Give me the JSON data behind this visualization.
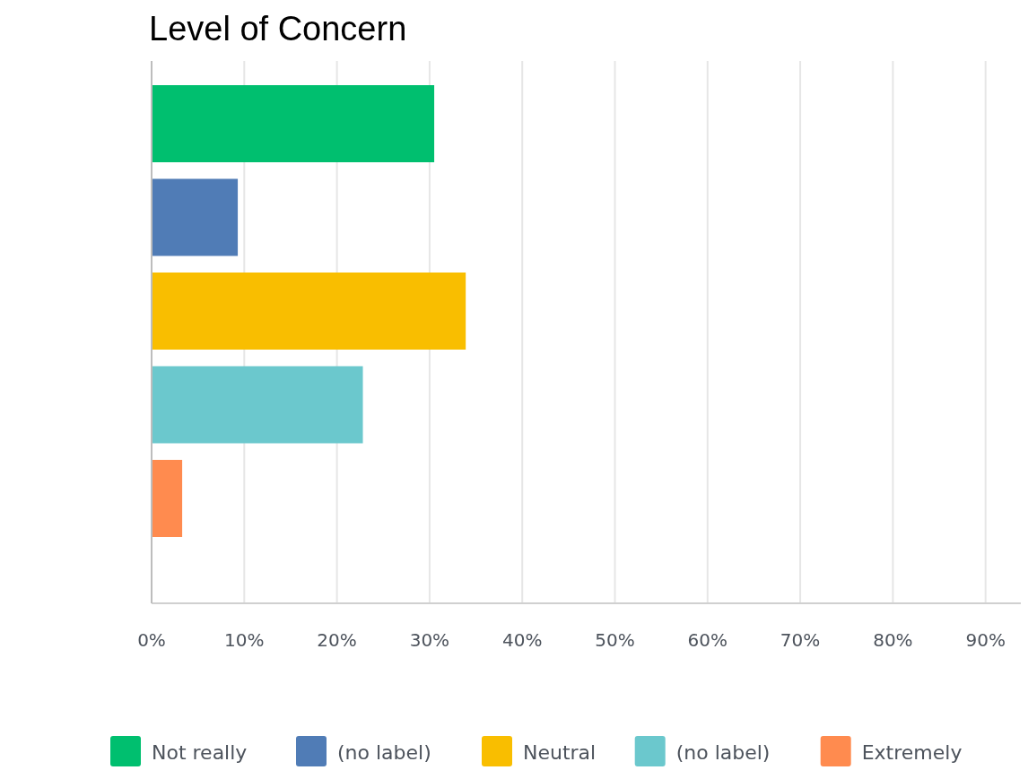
{
  "chart_data": {
    "type": "bar",
    "title": "Level of Concern",
    "orientation": "horizontal",
    "categories": [
      null,
      null,
      null,
      null,
      null
    ],
    "series": [
      {
        "name": "Not really",
        "color": "#00bf6f",
        "values": [
          30.5,
          null,
          null,
          null,
          null
        ]
      },
      {
        "name": "(no label)",
        "color": "#507cb6",
        "values": [
          null,
          9.3,
          null,
          null,
          null
        ]
      },
      {
        "name": "Neutral",
        "color": "#f9be00",
        "values": [
          null,
          null,
          33.9,
          null,
          null
        ]
      },
      {
        "name": "(no label)",
        "color": "#6bc8cd",
        "values": [
          null,
          null,
          null,
          22.8,
          null
        ]
      },
      {
        "name": "Extremely",
        "color": "#ff8b4f",
        "values": [
          null,
          null,
          null,
          null,
          3.3
        ]
      }
    ],
    "xlim": [
      0,
      94
    ],
    "xticks": [
      {
        "value": 0,
        "label": "0%"
      },
      {
        "value": 10,
        "label": "10%"
      },
      {
        "value": 20,
        "label": "20%"
      },
      {
        "value": 30,
        "label": "30%"
      },
      {
        "value": 40,
        "label": "40%"
      },
      {
        "value": 50,
        "label": "50%"
      },
      {
        "value": 60,
        "label": "60%"
      },
      {
        "value": 70,
        "label": "70%"
      },
      {
        "value": 80,
        "label": "80%"
      },
      {
        "value": 90,
        "label": "90%"
      }
    ],
    "grid": "x",
    "legend": "bottom"
  }
}
